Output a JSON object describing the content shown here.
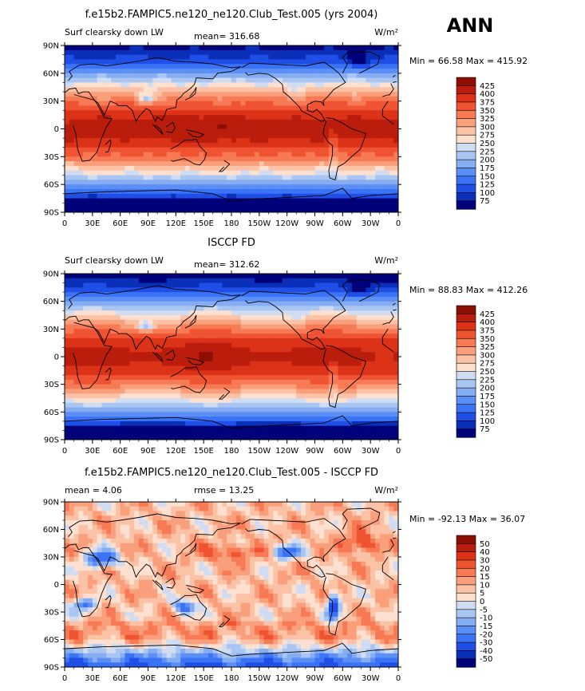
{
  "season_label": "ANN",
  "colors": {
    "abs_scale": [
      "#00007a",
      "#0a2fb8",
      "#1f4fe6",
      "#3a73f5",
      "#5c8ff5",
      "#86adf2",
      "#a9c6f2",
      "#cfdcf2",
      "#ffffff",
      "#fde0cf",
      "#fcc2a6",
      "#fa9f7c",
      "#f77a55",
      "#ef5332",
      "#dc3218",
      "#bb1d0c",
      "#8e0e04"
    ],
    "diff_scale": [
      "#00007a",
      "#0a2fb8",
      "#1f4fe6",
      "#3a73f5",
      "#5c8ff5",
      "#86adf2",
      "#a9c6f2",
      "#cfdcf2",
      "#ffffff",
      "#fde0cf",
      "#fcc2a6",
      "#fa9f7c",
      "#f77a55",
      "#ef5332",
      "#dc3218",
      "#bb1d0c",
      "#8e0e04"
    ],
    "coast": "#000000"
  },
  "chart_data": [
    {
      "type": "heatmap",
      "title": "f.e15b2.FAMPIC5.ne120_ne120.Club_Test.005 (yrs 2004)",
      "left_label": "Surf clearsky down LW",
      "stat_label": "mean= 316.68",
      "units": "W/m²",
      "minmax": "Min =  66.58 Max = 415.92",
      "x_ticks": [
        "0",
        "30E",
        "60E",
        "90E",
        "120E",
        "150E",
        "180",
        "150W",
        "120W",
        "90W",
        "60W",
        "30W",
        "0"
      ],
      "y_ticks": [
        "90N",
        "60N",
        "30N",
        "0",
        "30S",
        "60S",
        "90S"
      ],
      "xlim": [
        0,
        360
      ],
      "ylim": [
        -90,
        90
      ],
      "legend_labels": [
        "425",
        "400",
        "375",
        "350",
        "325",
        "300",
        "275",
        "250",
        "225",
        "200",
        "175",
        "150",
        "125",
        "100",
        "75"
      ],
      "field": "model"
    },
    {
      "type": "heatmap",
      "title": "ISCCP FD",
      "left_label": "Surf clearsky down LW",
      "stat_label": "mean= 312.62",
      "units": "W/m²",
      "minmax": "Min =  88.83 Max = 412.26",
      "x_ticks": [
        "0",
        "30E",
        "60E",
        "90E",
        "120E",
        "150E",
        "180",
        "150W",
        "120W",
        "90W",
        "60W",
        "30W",
        "0"
      ],
      "y_ticks": [
        "90N",
        "60N",
        "30N",
        "0",
        "30S",
        "60S",
        "90S"
      ],
      "xlim": [
        0,
        360
      ],
      "ylim": [
        -90,
        90
      ],
      "legend_labels": [
        "425",
        "400",
        "375",
        "350",
        "325",
        "300",
        "275",
        "250",
        "225",
        "200",
        "175",
        "150",
        "125",
        "100",
        "75"
      ],
      "field": "obs"
    },
    {
      "type": "heatmap",
      "title": "f.e15b2.FAMPIC5.ne120_ne120.Club_Test.005 - ISCCP FD",
      "left_label": "mean =    4.06",
      "stat_label": "rmse =   13.25",
      "units": "W/m²",
      "minmax": "Min = -92.13 Max =  36.07",
      "x_ticks": [
        "0",
        "30E",
        "60E",
        "90E",
        "120E",
        "150E",
        "180",
        "150W",
        "120W",
        "90W",
        "60W",
        "30W",
        "0"
      ],
      "y_ticks": [
        "90N",
        "60N",
        "30N",
        "0",
        "30S",
        "60S",
        "90S"
      ],
      "xlim": [
        0,
        360
      ],
      "ylim": [
        -90,
        90
      ],
      "legend_labels": [
        "50",
        "40",
        "30",
        "20",
        "15",
        "10",
        "5",
        "0",
        "-5",
        "-10",
        "-15",
        "-20",
        "-30",
        "-40",
        "-50"
      ],
      "field": "diff"
    }
  ]
}
